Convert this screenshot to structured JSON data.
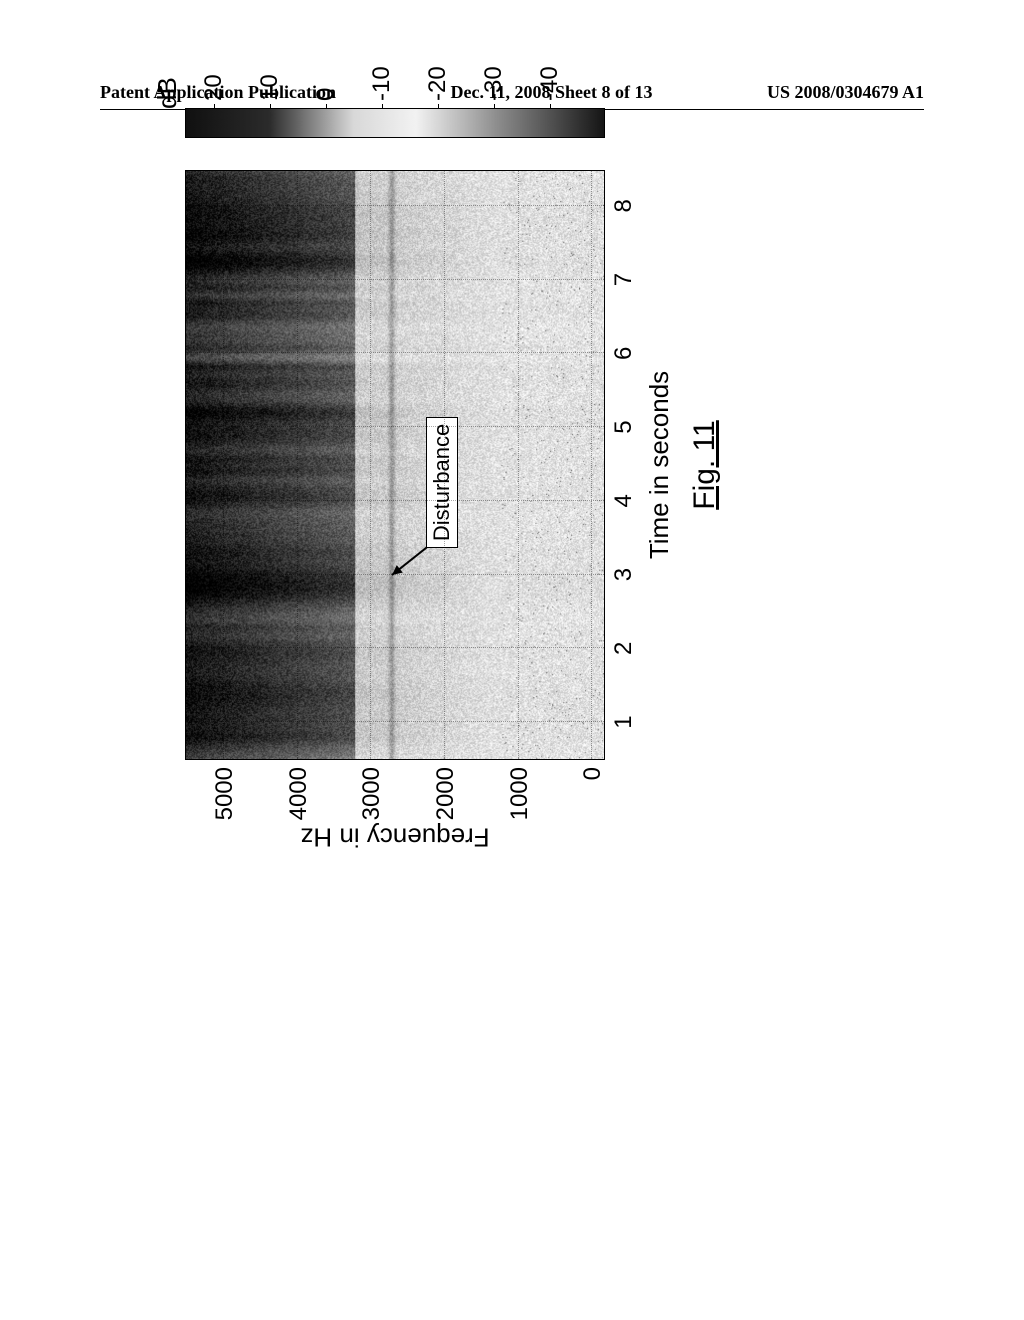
{
  "header": {
    "left": "Patent Application Publication",
    "center": "Dec. 11, 2008  Sheet 8 of 13",
    "right": "US 2008/0304679 A1"
  },
  "figure": {
    "type": "spectrogram",
    "caption": "Fig. 11",
    "xlabel": "Time in seconds",
    "ylabel": "Frequency in Hz",
    "clabel": "dB",
    "xaxis": {
      "min": 0.5,
      "max": 8.5,
      "ticks": [
        1,
        2,
        3,
        4,
        5,
        6,
        7,
        8
      ],
      "tick_labels": [
        "1",
        "2",
        "3",
        "4",
        "5",
        "6",
        "7",
        "8"
      ],
      "grid": true,
      "grid_color": "rgba(0,0,0,0.35)",
      "grid_style": "dotted"
    },
    "yaxis": {
      "min": -200,
      "max": 5500,
      "ticks": [
        0,
        1000,
        2000,
        3000,
        4000,
        5000
      ],
      "tick_labels": [
        "0",
        "1000",
        "2000",
        "3000",
        "4000",
        "5000"
      ],
      "grid": true,
      "grid_color": "rgba(0,0,0,0.35)",
      "grid_style": "dotted"
    },
    "colorbar": {
      "min": -50,
      "max": 25,
      "ticks": [
        -40,
        -30,
        -20,
        -10,
        0,
        10,
        20
      ],
      "tick_labels": [
        "-40",
        "-30",
        "-20",
        "-10",
        "0",
        "10",
        "20"
      ],
      "colormap": "grayscale",
      "low_color": "#1a1a1a",
      "high_color": "#ffffff",
      "invert": true
    },
    "annotation": {
      "label": "Disturbance",
      "box_x_time": 4.2,
      "box_y_hz": 2050,
      "arrow_tip_x_time": 3.0,
      "arrow_tip_y_hz": 2700,
      "box_border": "#000000",
      "box_bg": "#ffffff"
    },
    "disturbance_line_hz": 2700,
    "spectrogram_style": {
      "background_color": "#ffffff",
      "border_color": "#000000",
      "border_width": 1.5,
      "aspect_w": 590,
      "aspect_h": 420,
      "seed": 20080304679,
      "noise_scale": 0.85,
      "high_energy_band_hz": [
        3200,
        5500
      ],
      "low_energy_band_hz": [
        0,
        1200
      ],
      "vertical_striation_count": 38,
      "font_family": "Arial, Helvetica, sans-serif",
      "tick_fontsize": 24,
      "label_fontsize": 26,
      "caption_fontsize": 30
    }
  }
}
